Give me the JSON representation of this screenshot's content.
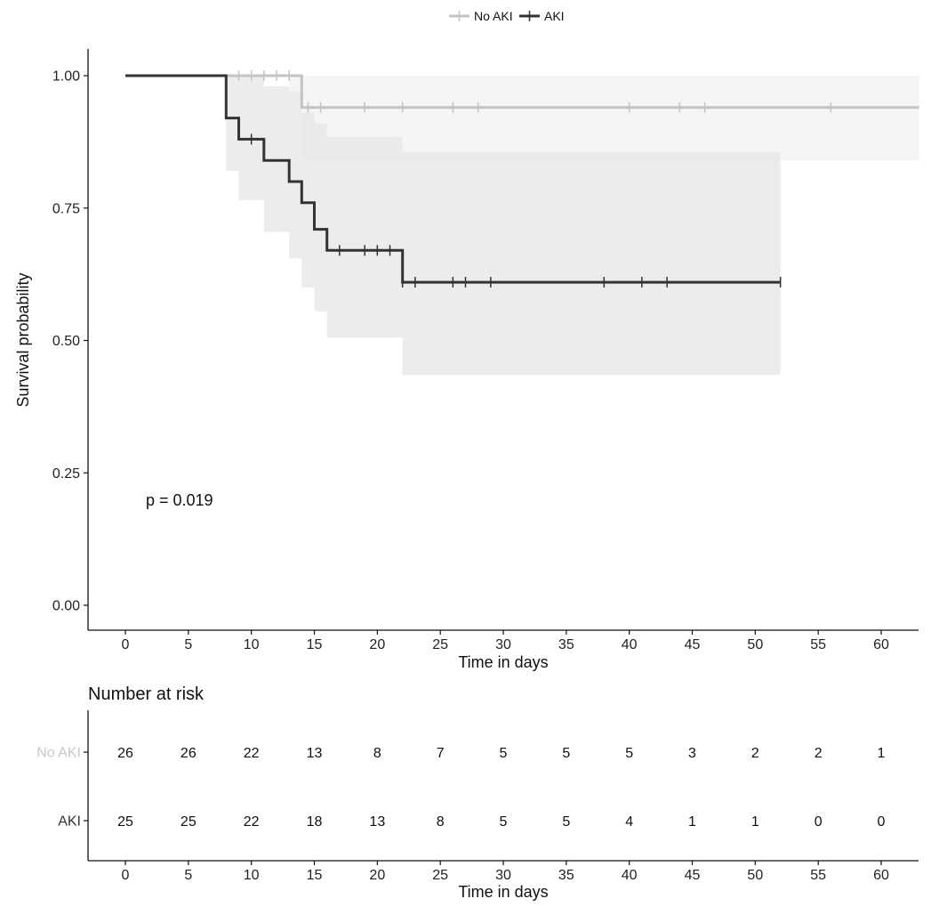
{
  "chart_data": {
    "type": "line",
    "subtype": "kaplan-meier",
    "ylabel": "Survival probability",
    "xlabel": "Time in days",
    "x_ticks": [
      0,
      5,
      10,
      15,
      20,
      25,
      30,
      35,
      40,
      45,
      50,
      55,
      60
    ],
    "y_ticks": [
      "0.00",
      "0.25",
      "0.50",
      "0.75",
      "1.00"
    ],
    "xlim": [
      -3,
      63
    ],
    "ylim": [
      -0.05,
      1.05
    ],
    "pvalue": "p = 0.019",
    "legend": {
      "position": "top",
      "entries": [
        "No AKI",
        "AKI"
      ]
    },
    "series": [
      {
        "name": "No AKI",
        "color": "#c4c4c4",
        "ci_color": "#f3f3f3",
        "steps": [
          [
            0,
            1.0
          ],
          [
            14,
            0.94
          ]
        ],
        "end_x": 63,
        "ci": [
          [
            8,
            1.0,
            1.0
          ],
          [
            13,
            0.97,
            1.0
          ],
          [
            14,
            0.84,
            1.0
          ],
          [
            15,
            0.84,
            1.0
          ],
          [
            22,
            0.84,
            1.0
          ],
          [
            63,
            0.84,
            1.0
          ]
        ],
        "censor_x": [
          9,
          10,
          11,
          12,
          13,
          14.5,
          15.5,
          19,
          22,
          26,
          28,
          40,
          44,
          46,
          56
        ]
      },
      {
        "name": "AKI",
        "color": "#333333",
        "ci_color": "#e6e6e6",
        "steps": [
          [
            0,
            1.0
          ],
          [
            8,
            0.92
          ],
          [
            9,
            0.88
          ],
          [
            11,
            0.84
          ],
          [
            13,
            0.8
          ],
          [
            14,
            0.76
          ],
          [
            15,
            0.71
          ],
          [
            16,
            0.67
          ],
          [
            22,
            0.61
          ]
        ],
        "end_x": 52,
        "ci": [
          [
            8,
            0.82,
            1.0
          ],
          [
            9,
            0.765,
            1.0
          ],
          [
            11,
            0.705,
            0.98
          ],
          [
            13,
            0.655,
            0.97
          ],
          [
            14,
            0.6,
            0.93
          ],
          [
            15,
            0.555,
            0.91
          ],
          [
            16,
            0.505,
            0.885
          ],
          [
            22,
            0.435,
            0.855
          ],
          [
            52,
            0.435,
            0.855
          ]
        ],
        "censor_x": [
          10,
          17,
          19,
          20,
          21,
          22,
          23,
          26,
          27,
          29,
          38,
          41,
          43,
          52
        ]
      }
    ],
    "risk_table": {
      "title": "Number at risk",
      "xlabel": "Time in days",
      "times": [
        0,
        5,
        10,
        15,
        20,
        25,
        30,
        35,
        40,
        45,
        50,
        55,
        60
      ],
      "rows": [
        {
          "label": "No AKI",
          "color": "#c8c8c8",
          "values": [
            26,
            26,
            22,
            13,
            8,
            7,
            5,
            5,
            5,
            3,
            2,
            2,
            1
          ]
        },
        {
          "label": "AKI",
          "color": "#333333",
          "values": [
            25,
            25,
            22,
            18,
            13,
            8,
            5,
            5,
            4,
            1,
            1,
            0,
            0
          ]
        }
      ]
    }
  }
}
